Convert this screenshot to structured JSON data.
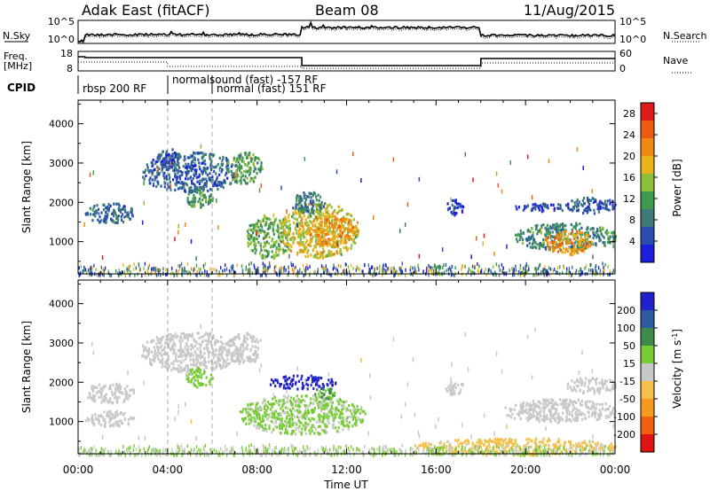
{
  "header": {
    "station": "Adak East (fitACF)",
    "beam": "Beam 08",
    "date": "11/Aug/2015"
  },
  "noise_panel": {
    "left_label": "N.Sky",
    "left_ticks": [
      "10^5",
      "10^0"
    ],
    "right_label": "N.Search",
    "right_ticks": [
      "10^5",
      "10^0"
    ]
  },
  "freq_panel": {
    "left_label_1": "Freq.",
    "left_label_2": "[MHz]",
    "left_ticks": [
      "18",
      "8"
    ],
    "right_label": "Nave",
    "right_ticks": [
      "60",
      "0"
    ]
  },
  "cpid_panel": {
    "label": "CPID",
    "entries": [
      {
        "text": "rbsp 200 RF",
        "start_hour": 0.0
      },
      {
        "text": "normalsound (fast) -157 RF",
        "start_hour": 4.0
      },
      {
        "text": "normal (fast) 151 RF",
        "start_hour": 6.0
      }
    ],
    "boundaries_hours": [
      4.0,
      6.0
    ]
  },
  "chart_data": [
    {
      "type": "heatmap",
      "name": "power",
      "ylabel": "Slant Range [km]",
      "yticks": [
        "1000",
        "2000",
        "3000",
        "4000"
      ],
      "ylim": [
        180,
        4600
      ],
      "xlim": [
        0,
        24
      ],
      "colorbar": {
        "label": "Power [dB]",
        "tick_labels": [
          "4",
          "8",
          "12",
          "16",
          "20",
          "24",
          "28"
        ],
        "range": [
          0,
          30
        ],
        "colors": [
          "#1d1ddc",
          "#2a4fb0",
          "#3d7a78",
          "#3f9a4e",
          "#8cbf3a",
          "#e8b31a",
          "#f08a10",
          "#ee5a10",
          "#e01b1b"
        ]
      },
      "regions": [
        {
          "x": [
            0.3,
            2.5
          ],
          "y": [
            1500,
            2000
          ],
          "value": 7
        },
        {
          "x": [
            2.8,
            7.2
          ],
          "y": [
            2300,
            3300
          ],
          "value": 6
        },
        {
          "x": [
            6.6,
            8.2
          ],
          "y": [
            2500,
            3300
          ],
          "value": 12
        },
        {
          "x": [
            3.5,
            4.5
          ],
          "y": [
            2900,
            3400
          ],
          "value": 5
        },
        {
          "x": [
            4.8,
            6.0
          ],
          "y": [
            1900,
            2400
          ],
          "value": 11
        },
        {
          "x": [
            7.5,
            9.5
          ],
          "y": [
            600,
            1700
          ],
          "value": 13
        },
        {
          "x": [
            9.0,
            12.5
          ],
          "y": [
            600,
            2000
          ],
          "value": 17
        },
        {
          "x": [
            10.2,
            12.3
          ],
          "y": [
            900,
            1700
          ],
          "value": 21
        },
        {
          "x": [
            9.5,
            11.0
          ],
          "y": [
            1700,
            2300
          ],
          "value": 9
        },
        {
          "x": [
            16.4,
            17.2
          ],
          "y": [
            1700,
            2100
          ],
          "value": 4
        },
        {
          "x": [
            19.5,
            22.0
          ],
          "y": [
            1800,
            2000
          ],
          "value": 4
        },
        {
          "x": [
            21.8,
            24.0
          ],
          "y": [
            1750,
            2150
          ],
          "value": 5
        },
        {
          "x": [
            19.5,
            24.0
          ],
          "y": [
            800,
            1500
          ],
          "value": 10
        },
        {
          "x": [
            20.8,
            23.0
          ],
          "y": [
            700,
            1300
          ],
          "value": 21
        }
      ],
      "ground_scatter": {
        "x": [
          0,
          24
        ],
        "y": [
          180,
          500
        ],
        "value": 10
      }
    },
    {
      "type": "heatmap",
      "name": "velocity",
      "ylabel": "Slant Range [km]",
      "yticks": [
        "1000",
        "2000",
        "3000",
        "4000"
      ],
      "ylim": [
        180,
        4600
      ],
      "xlim": [
        0,
        24
      ],
      "xticks": [
        "00:00",
        "04:00",
        "08:00",
        "12:00",
        "16:00",
        "20:00",
        "00:00"
      ],
      "xlabel": "Time UT",
      "colorbar": {
        "label": "Velocity [m s^-1]",
        "tick_labels": [
          "200",
          "100",
          "50",
          "15",
          "-15",
          "-50",
          "-100",
          "-200"
        ],
        "range": [
          -250,
          250
        ],
        "colors": [
          "#2222cc",
          "#2e5aa0",
          "#3d8a4a",
          "#77cc33",
          "#c8c8c8",
          "#f5c04a",
          "#f59a20",
          "#f06010",
          "#e01414"
        ]
      },
      "regions": [
        {
          "x": [
            0.3,
            2.5
          ],
          "y": [
            1500,
            2000
          ],
          "value": 0
        },
        {
          "x": [
            0.3,
            2.5
          ],
          "y": [
            900,
            1300
          ],
          "value": 0
        },
        {
          "x": [
            2.8,
            7.2
          ],
          "y": [
            2300,
            3300
          ],
          "value": -5
        },
        {
          "x": [
            6.6,
            8.2
          ],
          "y": [
            2500,
            3300
          ],
          "value": 0
        },
        {
          "x": [
            4.8,
            6.0
          ],
          "y": [
            1900,
            2400
          ],
          "value": 40
        },
        {
          "x": [
            7.2,
            12.8
          ],
          "y": [
            700,
            1700
          ],
          "value": 35
        },
        {
          "x": [
            8.5,
            11.5
          ],
          "y": [
            1850,
            2200
          ],
          "value": 220
        },
        {
          "x": [
            10.5,
            11.5
          ],
          "y": [
            1600,
            1900
          ],
          "value": 90
        },
        {
          "x": [
            16.4,
            17.2
          ],
          "y": [
            1700,
            2100
          ],
          "value": 0
        },
        {
          "x": [
            19.0,
            24.0
          ],
          "y": [
            1000,
            1600
          ],
          "value": 0
        },
        {
          "x": [
            21.8,
            24.0
          ],
          "y": [
            1750,
            2150
          ],
          "value": 0
        },
        {
          "x": [
            15.0,
            24.0
          ],
          "y": [
            180,
            600
          ],
          "value": -40
        }
      ],
      "ground_scatter": {
        "x": [
          0,
          24
        ],
        "y": [
          180,
          450
        ],
        "value": 30
      }
    }
  ]
}
